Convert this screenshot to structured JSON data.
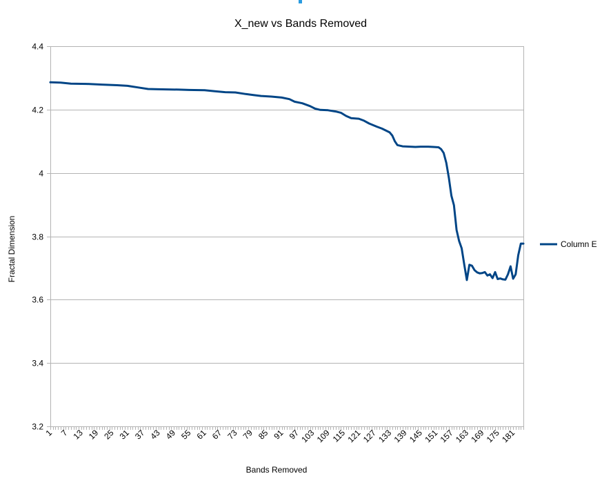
{
  "colors": {
    "series": "#004586",
    "grid": "#b3b3b3",
    "accent": "#2a9be0"
  },
  "chart_data": {
    "type": "line",
    "title": "X_new vs Bands Removed",
    "xlabel": "Bands Removed",
    "ylabel": "Fractal Dimension",
    "ylim": [
      3.2,
      4.4
    ],
    "yticks": [
      3.2,
      3.4,
      3.6,
      3.8,
      4,
      4.2,
      4.4
    ],
    "ytick_labels": [
      "3.2",
      "3.4",
      "3.6",
      "3.8",
      "4",
      "4.2",
      "4.4"
    ],
    "x_range": [
      1,
      184
    ],
    "xtick_labels": [
      "1",
      "7",
      "13",
      "19",
      "25",
      "31",
      "37",
      "43",
      "49",
      "55",
      "61",
      "67",
      "73",
      "79",
      "85",
      "91",
      "97",
      "103",
      "109",
      "115",
      "121",
      "127",
      "133",
      "139",
      "145",
      "151",
      "157",
      "163",
      "169",
      "175",
      "181"
    ],
    "grid": true,
    "legend_position": "right",
    "series": [
      {
        "name": "Column E",
        "points": [
          [
            1,
            4.286
          ],
          [
            5,
            4.285
          ],
          [
            9,
            4.282
          ],
          [
            15,
            4.281
          ],
          [
            21,
            4.279
          ],
          [
            27,
            4.277
          ],
          [
            31,
            4.275
          ],
          [
            35,
            4.27
          ],
          [
            39,
            4.265
          ],
          [
            43,
            4.264
          ],
          [
            51,
            4.263
          ],
          [
            55,
            4.262
          ],
          [
            61,
            4.261
          ],
          [
            65,
            4.258
          ],
          [
            69,
            4.255
          ],
          [
            73,
            4.254
          ],
          [
            77,
            4.249
          ],
          [
            80,
            4.246
          ],
          [
            83,
            4.243
          ],
          [
            87,
            4.241
          ],
          [
            91,
            4.238
          ],
          [
            94,
            4.233
          ],
          [
            96,
            4.225
          ],
          [
            99,
            4.22
          ],
          [
            102,
            4.211
          ],
          [
            104,
            4.203
          ],
          [
            106,
            4.199
          ],
          [
            109,
            4.198
          ],
          [
            112,
            4.194
          ],
          [
            114,
            4.19
          ],
          [
            116,
            4.18
          ],
          [
            118,
            4.173
          ],
          [
            121,
            4.171
          ],
          [
            123,
            4.165
          ],
          [
            125,
            4.156
          ],
          [
            128,
            4.146
          ],
          [
            130,
            4.14
          ],
          [
            133,
            4.128
          ],
          [
            134,
            4.118
          ],
          [
            135,
            4.1
          ],
          [
            136,
            4.088
          ],
          [
            138,
            4.084
          ],
          [
            141,
            4.083
          ],
          [
            143,
            4.082
          ],
          [
            145,
            4.083
          ],
          [
            148,
            4.083
          ],
          [
            150,
            4.082
          ],
          [
            152,
            4.081
          ],
          [
            153,
            4.075
          ],
          [
            154,
            4.063
          ],
          [
            155,
            4.032
          ],
          [
            156,
            3.985
          ],
          [
            157,
            3.928
          ],
          [
            158,
            3.898
          ],
          [
            159,
            3.82
          ],
          [
            160,
            3.785
          ],
          [
            161,
            3.762
          ],
          [
            162,
            3.71
          ],
          [
            163,
            3.662
          ],
          [
            164,
            3.71
          ],
          [
            165,
            3.707
          ],
          [
            166,
            3.693
          ],
          [
            167,
            3.686
          ],
          [
            168,
            3.683
          ],
          [
            169,
            3.684
          ],
          [
            170,
            3.687
          ],
          [
            171,
            3.676
          ],
          [
            172,
            3.68
          ],
          [
            173,
            3.668
          ],
          [
            174,
            3.687
          ],
          [
            175,
            3.665
          ],
          [
            176,
            3.667
          ],
          [
            177,
            3.664
          ],
          [
            178,
            3.663
          ],
          [
            179,
            3.68
          ],
          [
            180,
            3.705
          ],
          [
            181,
            3.666
          ],
          [
            182,
            3.68
          ],
          [
            183,
            3.74
          ],
          [
            184,
            3.777
          ],
          [
            185,
            3.777
          ]
        ]
      }
    ]
  }
}
